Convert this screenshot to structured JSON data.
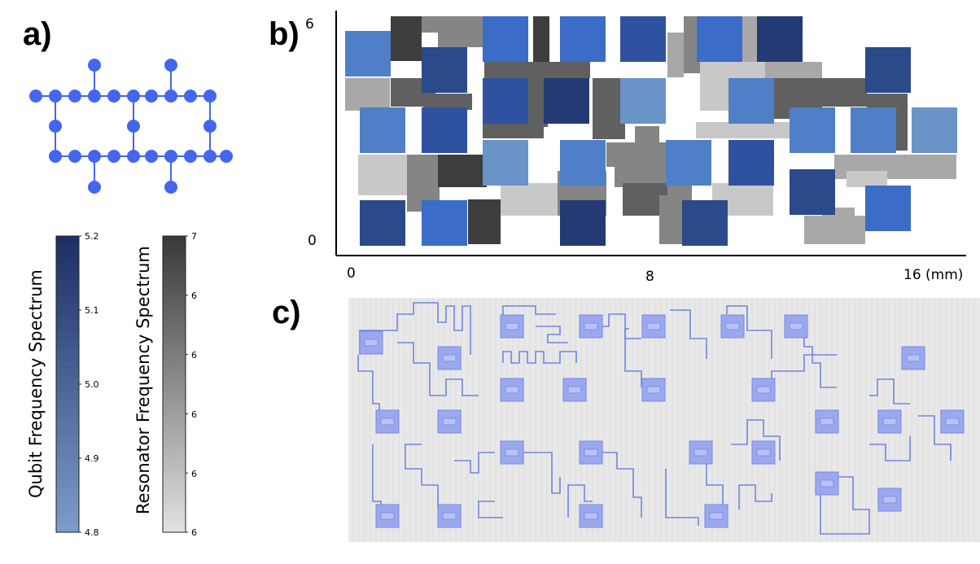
{
  "panels": {
    "a": "a)",
    "b": "b)",
    "c": "c)"
  },
  "layout_plot": {
    "x_ticks": [
      "0",
      "8",
      "16 (mm)"
    ],
    "y_ticks": [
      "6",
      "0"
    ]
  },
  "qubit_colorbar": {
    "label": "Qubit Frequency Spectrum",
    "ticks": [
      "5.2",
      "5.1",
      "5.0",
      "4.9",
      "4.8"
    ],
    "color_low": "#7b9bc8",
    "color_high": "#1d2f66"
  },
  "resonator_colorbar": {
    "label": "Resonator Frequency Spectrum",
    "ticks": [
      "7",
      "6",
      "6",
      "6",
      "6",
      "6"
    ],
    "color_low": "#e0e0e0",
    "color_high": "#3a3a3a"
  },
  "colors": {
    "node": "#4466ee",
    "qubit_blues": [
      "#2a4a8a",
      "#3a6cc8",
      "#4f7fc6",
      "#233a74",
      "#2f52a0",
      "#6a93c8"
    ],
    "resonator_grays": [
      "#3e3e3e",
      "#606060",
      "#858585",
      "#a8a8a8",
      "#c8c8c8",
      "#dcdcdc"
    ],
    "chip_bg": "#e8e8e8",
    "wire": "#6f86e0",
    "pad": "#9aa8f0"
  }
}
